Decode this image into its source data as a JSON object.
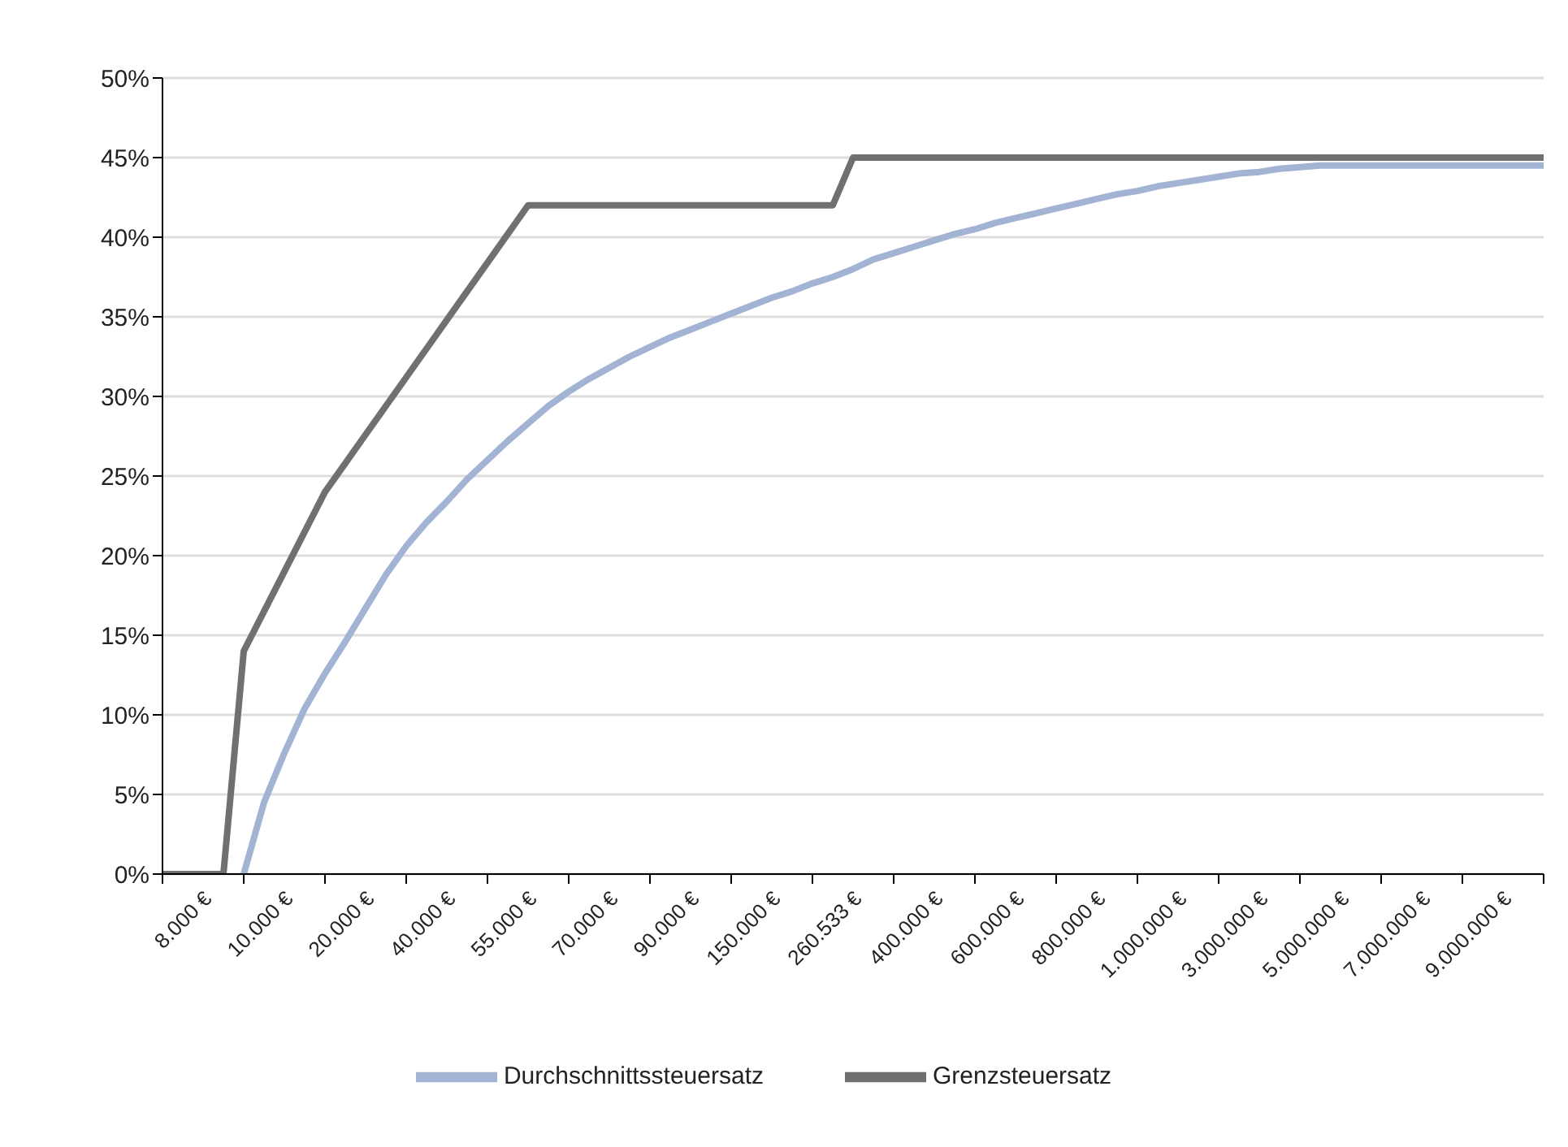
{
  "chart_data": {
    "type": "line",
    "categories": [
      null,
      null,
      "8.000 €",
      null,
      null,
      null,
      "10.000 €",
      null,
      null,
      null,
      "20.000 €",
      null,
      null,
      null,
      "40.000 €",
      null,
      null,
      null,
      "55.000 €",
      null,
      null,
      null,
      "70.000 €",
      null,
      null,
      null,
      "90.000 €",
      null,
      null,
      null,
      "150.000 €",
      null,
      null,
      null,
      "260.533 €",
      null,
      null,
      null,
      "400.000 €",
      null,
      null,
      null,
      "600.000 €",
      null,
      null,
      null,
      "800.000 €",
      null,
      null,
      null,
      "1.000.000 €",
      null,
      null,
      null,
      "3.000.000 €",
      null,
      null,
      null,
      "5.000.000 €",
      null,
      null,
      null,
      "7.000.000 €",
      null,
      null,
      null,
      "9.000.000 €",
      null,
      null
    ],
    "series": [
      {
        "name": "Durchschnittssteuersatz",
        "color": "#a3b3d4",
        "values": [
          null,
          null,
          null,
          null,
          0,
          4.5,
          7.6,
          10.4,
          12.6,
          14.6,
          16.7,
          18.8,
          20.6,
          22.1,
          23.4,
          24.8,
          26.0,
          27.2,
          28.3,
          29.4,
          30.3,
          31.1,
          31.8,
          32.5,
          33.1,
          33.7,
          34.2,
          34.7,
          35.2,
          35.7,
          36.2,
          36.6,
          37.1,
          37.5,
          38.0,
          38.6,
          39.0,
          39.4,
          39.8,
          40.2,
          40.5,
          40.9,
          41.2,
          41.5,
          41.8,
          42.1,
          42.4,
          42.7,
          42.9,
          43.2,
          43.4,
          43.6,
          43.8,
          44.0,
          44.1,
          44.3,
          44.4,
          44.5,
          44.5,
          44.5,
          44.5,
          44.5,
          44.5,
          44.5,
          44.5,
          44.5,
          44.5,
          44.5,
          44.5
        ]
      },
      {
        "name": "Grenzsteuersatz",
        "color": "#707070",
        "values": [
          0,
          0,
          0,
          0,
          14,
          16.5,
          19,
          21.5,
          24,
          25.8,
          27.6,
          29.4,
          31.2,
          33,
          34.8,
          36.6,
          38.4,
          40.2,
          42,
          42,
          42,
          42,
          42,
          42,
          42,
          42,
          42,
          42,
          42,
          42,
          42,
          42,
          42,
          42,
          45,
          45,
          45,
          45,
          45,
          45,
          45,
          45,
          45,
          45,
          45,
          45,
          45,
          45,
          45,
          45,
          45,
          45,
          45,
          45,
          45,
          45,
          45,
          45,
          45,
          45,
          45,
          45,
          45,
          45,
          45,
          45,
          45,
          45,
          45
        ]
      }
    ],
    "ylim": [
      0,
      50
    ],
    "yticks": [
      {
        "value": 0,
        "label": "0%"
      },
      {
        "value": 5,
        "label": "5%"
      },
      {
        "value": 10,
        "label": "10%"
      },
      {
        "value": 15,
        "label": "15%"
      },
      {
        "value": 20,
        "label": "20%"
      },
      {
        "value": 25,
        "label": "25%"
      },
      {
        "value": 30,
        "label": "30%"
      },
      {
        "value": 35,
        "label": "35%"
      },
      {
        "value": 40,
        "label": "40%"
      },
      {
        "value": 45,
        "label": "45%"
      },
      {
        "value": 50,
        "label": "50%"
      }
    ],
    "grid": "y",
    "legend": "bottom"
  }
}
